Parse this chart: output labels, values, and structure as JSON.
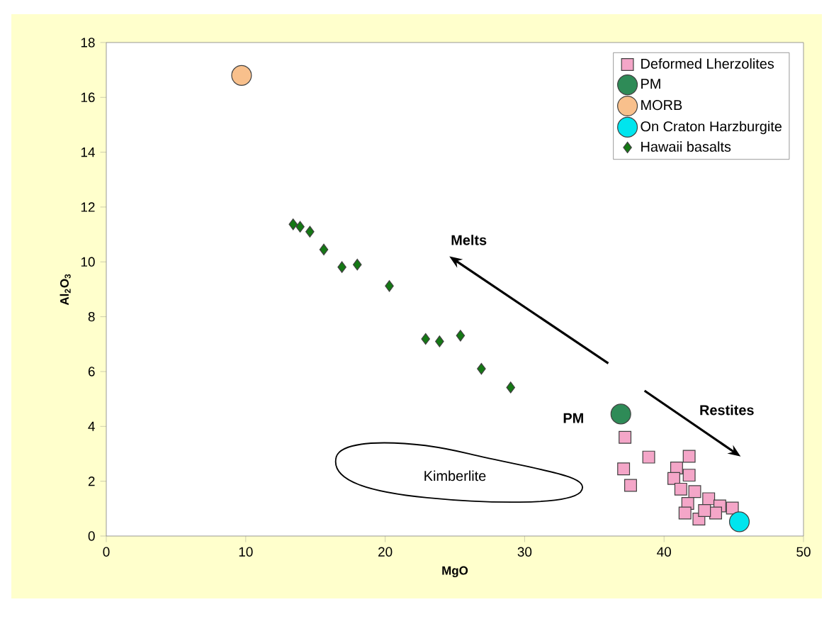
{
  "chart_data": {
    "type": "scatter",
    "xlabel": "MgO",
    "ylabel": "Al$_{2}$O$_{3}$",
    "xlim": [
      0,
      50
    ],
    "ylim": [
      0,
      18
    ],
    "xticks": [
      0,
      10,
      20,
      30,
      40,
      50
    ],
    "yticks": [
      0,
      2,
      4,
      6,
      8,
      10,
      12,
      14,
      16,
      18
    ],
    "grid": false,
    "legend": "top right",
    "series": [
      {
        "name": "Deformed Lherzolites",
        "color": "#f4a6c8",
        "marker": "square",
        "x": [
          37.2,
          38.9,
          37.1,
          37.6,
          41.8,
          40.9,
          41.8,
          40.7,
          41.2,
          42.2,
          41.7,
          43.2,
          44.0,
          44.9,
          41.5,
          42.5,
          43.7,
          42.9
        ],
        "values": [
          3.6,
          2.88,
          2.45,
          1.85,
          2.91,
          2.48,
          2.22,
          2.1,
          1.71,
          1.62,
          1.19,
          1.36,
          1.1,
          1.02,
          0.84,
          0.62,
          0.84,
          0.93
        ]
      },
      {
        "name": "PM",
        "color": "#2e8b57",
        "marker": "circle",
        "x": [
          36.9
        ],
        "values": [
          4.45
        ]
      },
      {
        "name": "MORB",
        "color": "#f8c08c",
        "marker": "circle",
        "x": [
          9.7
        ],
        "values": [
          16.8
        ]
      },
      {
        "name": "On Craton Harzburgite",
        "color": "#00e5ee",
        "marker": "circle",
        "x": [
          45.4
        ],
        "values": [
          0.52
        ]
      },
      {
        "name": "Hawaii basalts",
        "color": "#147814",
        "marker": "diamond",
        "x": [
          13.4,
          13.9,
          14.6,
          15.6,
          16.9,
          18.0,
          20.3,
          22.9,
          23.9,
          25.4,
          26.9,
          29.0
        ],
        "values": [
          11.37,
          11.28,
          11.1,
          10.45,
          9.81,
          9.9,
          9.12,
          7.19,
          7.1,
          7.31,
          6.1,
          5.42
        ]
      }
    ],
    "annotations": [
      "Melts",
      "Restites",
      "PM",
      "Kimberlite"
    ]
  }
}
